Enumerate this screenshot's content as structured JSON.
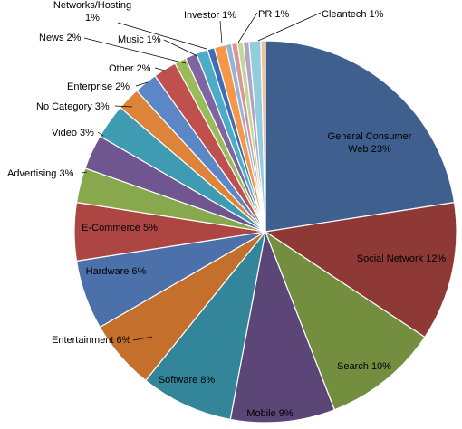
{
  "chart_data": {
    "type": "pie",
    "title": "",
    "legend": "none",
    "slices": [
      {
        "name": "General Consumer Web",
        "value": 23,
        "label_lines": [
          "General Consumer",
          "Web 23%"
        ],
        "color": "#3F5F8F"
      },
      {
        "name": "Social Network",
        "value": 12,
        "label_lines": [
          "Social Network 12%"
        ],
        "color": "#8E3936"
      },
      {
        "name": "Search",
        "value": 10,
        "label_lines": [
          "Search 10%"
        ],
        "color": "#728E3E"
      },
      {
        "name": "Mobile",
        "value": 9,
        "label_lines": [
          "Mobile 9%"
        ],
        "color": "#5C4577"
      },
      {
        "name": "Software",
        "value": 8,
        "label_lines": [
          "Software 8%"
        ],
        "color": "#33859A"
      },
      {
        "name": "Entertainment",
        "value": 6,
        "label_lines": [
          "Entertainment  6%"
        ],
        "color": "#C46F2C"
      },
      {
        "name": "Hardware",
        "value": 6,
        "label_lines": [
          "Hardware 6%"
        ],
        "color": "#4C71AA"
      },
      {
        "name": "E-Commerce",
        "value": 5,
        "label_lines": [
          "E-Commerce  5%"
        ],
        "color": "#AD4643"
      },
      {
        "name": "Advertising",
        "value": 3,
        "label_lines": [
          "Advertising 3%"
        ],
        "color": "#88A84E"
      },
      {
        "name": "Video",
        "value": 3,
        "label_lines": [
          "Video 3%"
        ],
        "color": "#6F5690"
      },
      {
        "name": "No Category",
        "value": 3,
        "label_lines": [
          "No Category 3%"
        ],
        "color": "#3E9BB2"
      },
      {
        "name": "Enterprise",
        "value": 2,
        "label_lines": [
          "Enterprise 2%"
        ],
        "color": "#DE843A"
      },
      {
        "name": "Other",
        "value": 2,
        "label_lines": [
          "Other 2%"
        ],
        "color": "#5B87C6"
      },
      {
        "name": "News",
        "value": 2,
        "label_lines": [
          "News 2%"
        ],
        "color": "#C0504D"
      },
      {
        "name": "Music",
        "value": 1,
        "label_lines": [
          "Music 1%"
        ],
        "color": "#9BBB59"
      },
      {
        "name": "Networks/Hosting",
        "value": 1,
        "label_lines": [
          "Networks/Hosting",
          "1%"
        ],
        "color": "#8064A2"
      },
      {
        "name": "Investor",
        "value": 1,
        "label_lines": [
          "Investor 1%"
        ],
        "color": "#4BACC6"
      },
      {
        "name": "",
        "value": 0.6,
        "label_lines": [],
        "color": "#3F6DB5"
      },
      {
        "name": "PR",
        "value": 1,
        "label_lines": [
          "PR 1%"
        ],
        "color": "#F79646"
      },
      {
        "name": "",
        "value": 0.5,
        "label_lines": [],
        "color": "#95B3D7"
      },
      {
        "name": "",
        "value": 0.5,
        "label_lines": [],
        "color": "#D99694"
      },
      {
        "name": "",
        "value": 0.5,
        "label_lines": [],
        "color": "#C3D69B"
      },
      {
        "name": "",
        "value": 0.5,
        "label_lines": [],
        "color": "#B3A2C7"
      },
      {
        "name": "Cleantech",
        "value": 1,
        "label_lines": [
          "Cleantech 1%"
        ],
        "color": "#93CDDD"
      },
      {
        "name": "",
        "value": 0.4,
        "label_lines": [],
        "color": "#FAC090"
      }
    ]
  }
}
